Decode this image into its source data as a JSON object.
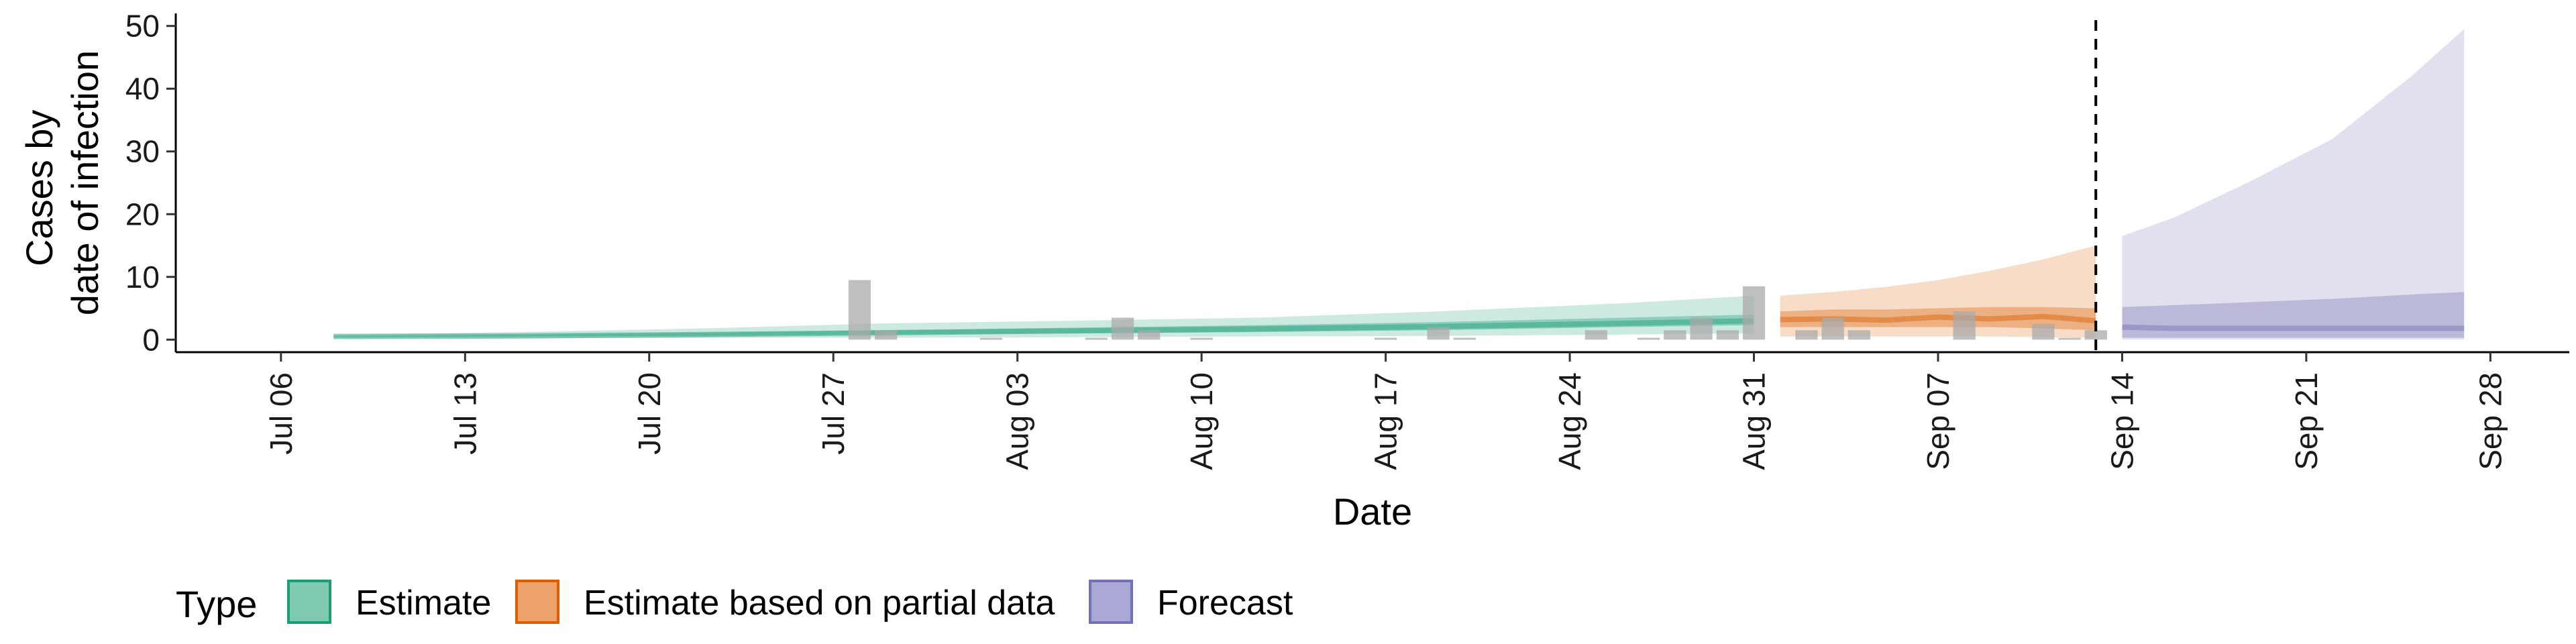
{
  "chart_data": {
    "type": "area",
    "xlabel": "Date",
    "ylabel_lines": [
      "Cases by",
      "date of infection"
    ],
    "ylim": [
      -2,
      52
    ],
    "y_ticks": [
      0,
      10,
      20,
      30,
      40,
      50
    ],
    "x_range": [
      "2020-07-02",
      "2020-10-01"
    ],
    "x_ticks": [
      {
        "date": "2020-07-06",
        "label": "Jul 06"
      },
      {
        "date": "2020-07-13",
        "label": "Jul 13"
      },
      {
        "date": "2020-07-20",
        "label": "Jul 20"
      },
      {
        "date": "2020-07-27",
        "label": "Jul 27"
      },
      {
        "date": "2020-08-03",
        "label": "Aug 03"
      },
      {
        "date": "2020-08-10",
        "label": "Aug 10"
      },
      {
        "date": "2020-08-17",
        "label": "Aug 17"
      },
      {
        "date": "2020-08-24",
        "label": "Aug 24"
      },
      {
        "date": "2020-08-31",
        "label": "Aug 31"
      },
      {
        "date": "2020-09-07",
        "label": "Sep 07"
      },
      {
        "date": "2020-09-14",
        "label": "Sep 14"
      },
      {
        "date": "2020-09-21",
        "label": "Sep 21"
      },
      {
        "date": "2020-09-28",
        "label": "Sep 28"
      }
    ],
    "vline_date": "2020-09-13",
    "legend": {
      "title": "Type",
      "position": "bottom",
      "entries": [
        {
          "label": "Estimate",
          "fill": "#7fcab0",
          "stroke": "#1b9e77"
        },
        {
          "label": "Estimate based on partial data",
          "fill": "#eca26a",
          "stroke": "#d95f02"
        },
        {
          "label": "Forecast",
          "fill": "#aaa8d4",
          "stroke": "#7570b3"
        }
      ]
    },
    "observed_cases": {
      "color": "#a9a9a9",
      "points": [
        {
          "date": "2020-07-28",
          "value": 9.5
        },
        {
          "date": "2020-07-29",
          "value": 1.5
        },
        {
          "date": "2020-08-02",
          "value": 0.3
        },
        {
          "date": "2020-08-06",
          "value": 0.3
        },
        {
          "date": "2020-08-07",
          "value": 3.5
        },
        {
          "date": "2020-08-08",
          "value": 1.5
        },
        {
          "date": "2020-08-10",
          "value": 0.3
        },
        {
          "date": "2020-08-17",
          "value": 0.3
        },
        {
          "date": "2020-08-19",
          "value": 2.0
        },
        {
          "date": "2020-08-20",
          "value": 0.3
        },
        {
          "date": "2020-08-25",
          "value": 1.5
        },
        {
          "date": "2020-08-27",
          "value": 0.3
        },
        {
          "date": "2020-08-28",
          "value": 1.5
        },
        {
          "date": "2020-08-29",
          "value": 3.5
        },
        {
          "date": "2020-08-30",
          "value": 1.5
        },
        {
          "date": "2020-08-31",
          "value": 8.5
        },
        {
          "date": "2020-09-02",
          "value": 1.5
        },
        {
          "date": "2020-09-03",
          "value": 3.5
        },
        {
          "date": "2020-09-04",
          "value": 1.5
        },
        {
          "date": "2020-09-08",
          "value": 4.5
        },
        {
          "date": "2020-09-11",
          "value": 2.5
        },
        {
          "date": "2020-09-12",
          "value": 0.3
        },
        {
          "date": "2020-09-13",
          "value": 1.5
        }
      ]
    },
    "series": [
      {
        "name": "Estimate",
        "fill": "#1b9e77",
        "stroke": "#1b9e77",
        "x": [
          "2020-07-08",
          "2020-07-15",
          "2020-07-22",
          "2020-07-29",
          "2020-08-05",
          "2020-08-12",
          "2020-08-19",
          "2020-08-26",
          "2020-08-31"
        ],
        "outer_low": [
          0.2,
          0.2,
          0.3,
          0.3,
          0.4,
          0.5,
          0.6,
          0.8,
          1.0
        ],
        "outer_high": [
          0.8,
          1.2,
          1.8,
          2.6,
          3.0,
          3.5,
          4.5,
          5.8,
          7.0
        ],
        "inner_low": [
          0.4,
          0.5,
          0.6,
          0.8,
          1.0,
          1.2,
          1.5,
          2.0,
          2.3
        ],
        "inner_high": [
          0.6,
          0.8,
          1.1,
          1.5,
          1.9,
          2.3,
          2.8,
          3.5,
          4.0
        ],
        "median": [
          0.5,
          0.6,
          0.8,
          1.1,
          1.4,
          1.7,
          2.1,
          2.6,
          3.0
        ]
      },
      {
        "name": "Estimate based on partial data",
        "fill": "#d95f02",
        "stroke": "#d95f02",
        "x": [
          "2020-09-01",
          "2020-09-03",
          "2020-09-05",
          "2020-09-07",
          "2020-09-09",
          "2020-09-11",
          "2020-09-13"
        ],
        "outer_low": [
          0.5,
          0.5,
          0.5,
          0.5,
          0.5,
          0.4,
          0.3
        ],
        "outer_high": [
          7.0,
          7.6,
          8.4,
          9.5,
          11.0,
          12.8,
          15.0
        ],
        "inner_low": [
          2.0,
          2.0,
          2.0,
          2.0,
          2.0,
          1.8,
          1.5
        ],
        "inner_high": [
          4.5,
          4.8,
          4.8,
          5.0,
          5.2,
          5.2,
          5.0
        ],
        "median": [
          3.2,
          3.3,
          3.1,
          3.6,
          3.3,
          3.7,
          3.0
        ]
      },
      {
        "name": "Forecast",
        "fill": "#7570b3",
        "stroke": "#7570b3",
        "x": [
          "2020-09-14",
          "2020-09-16",
          "2020-09-19",
          "2020-09-22",
          "2020-09-25",
          "2020-09-27"
        ],
        "outer_low": [
          0.0,
          0.0,
          0.0,
          0.0,
          0.0,
          0.0
        ],
        "outer_high": [
          16.5,
          19.5,
          25.5,
          32.0,
          42.0,
          49.5
        ],
        "inner_low": [
          0.3,
          0.3,
          0.3,
          0.3,
          0.3,
          0.3
        ],
        "inner_high": [
          5.2,
          5.5,
          6.0,
          6.5,
          7.2,
          7.6
        ],
        "median": [
          2.0,
          1.8,
          1.8,
          1.8,
          1.8,
          1.8
        ]
      }
    ]
  }
}
